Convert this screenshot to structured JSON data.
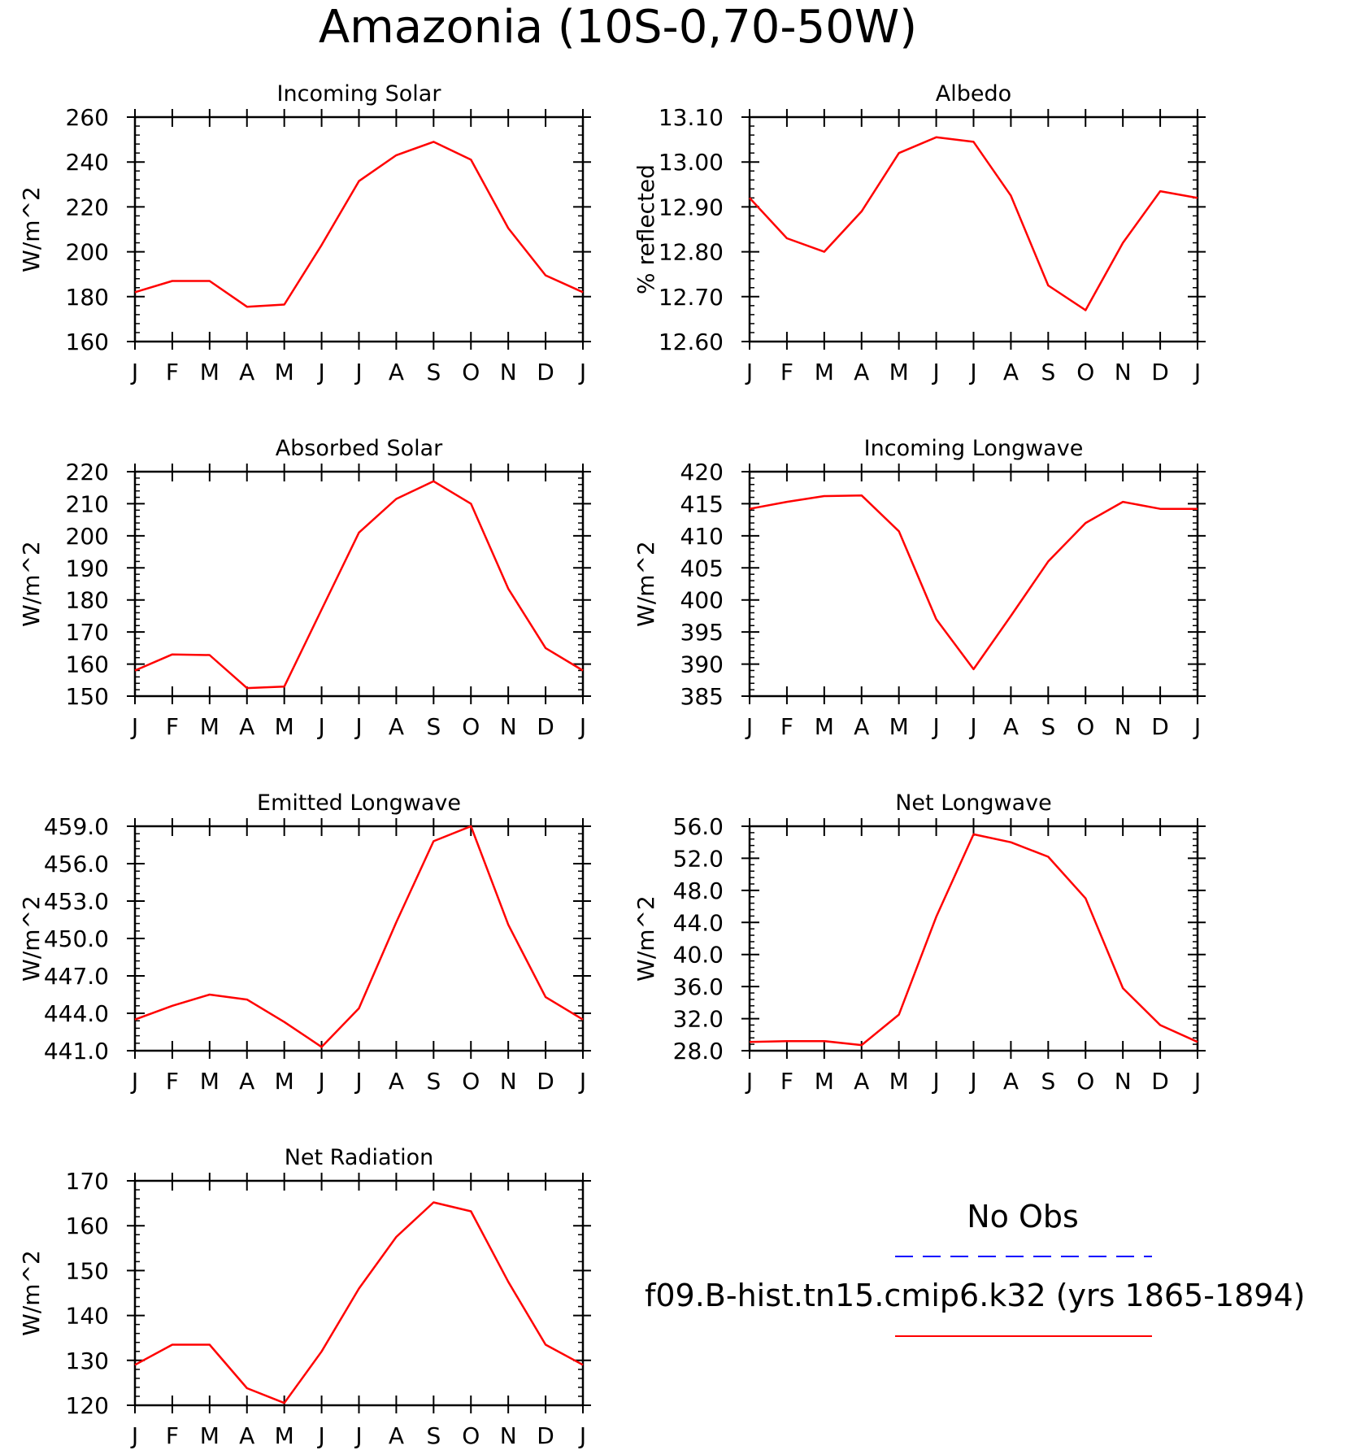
{
  "figure_title": "Amazonia (10S-0,70-50W)",
  "legend": {
    "obs_label": "No Obs",
    "obs_color": "#0000ff",
    "model_label": "f09.B-hist.tn15.cmip6.k32 (yrs 1865-1894)",
    "model_color": "#ff0000"
  },
  "chart_data": [
    {
      "type": "line",
      "title": "Incoming Solar",
      "ylabel": "W/m^2",
      "x": [
        "J",
        "F",
        "M",
        "A",
        "M",
        "J",
        "J",
        "A",
        "S",
        "O",
        "N",
        "D",
        "J"
      ],
      "ylim": [
        160,
        260
      ],
      "yticks": [
        "160",
        "180",
        "200",
        "220",
        "240",
        "260"
      ],
      "series": [
        {
          "color": "#ff0000",
          "values": [
            182,
            187,
            187,
            175.5,
            176.5,
            203,
            231.5,
            243,
            249,
            241,
            210.5,
            189.5,
            182
          ]
        }
      ]
    },
    {
      "type": "line",
      "title": "Albedo",
      "ylabel": "% reflected",
      "x": [
        "J",
        "F",
        "M",
        "A",
        "M",
        "J",
        "J",
        "A",
        "S",
        "O",
        "N",
        "D",
        "J"
      ],
      "ylim": [
        12.6,
        13.1
      ],
      "yticks": [
        "12.60",
        "12.70",
        "12.80",
        "12.90",
        "13.00",
        "13.10"
      ],
      "series": [
        {
          "color": "#ff0000",
          "values": [
            12.92,
            12.83,
            12.8,
            12.89,
            13.02,
            13.055,
            13.045,
            12.925,
            12.725,
            12.67,
            12.82,
            12.935,
            12.92
          ]
        }
      ]
    },
    {
      "type": "line",
      "title": "Absorbed Solar",
      "ylabel": "W/m^2",
      "x": [
        "J",
        "F",
        "M",
        "A",
        "M",
        "J",
        "J",
        "A",
        "S",
        "O",
        "N",
        "D",
        "J"
      ],
      "ylim": [
        150,
        220
      ],
      "yticks": [
        "150",
        "160",
        "170",
        "180",
        "190",
        "200",
        "210",
        "220"
      ],
      "series": [
        {
          "color": "#ff0000",
          "values": [
            158,
            163,
            162.8,
            152.5,
            153,
            177,
            201,
            211.5,
            217,
            210,
            183.5,
            165,
            158
          ]
        }
      ]
    },
    {
      "type": "line",
      "title": "Incoming Longwave",
      "ylabel": "W/m^2",
      "x": [
        "J",
        "F",
        "M",
        "A",
        "M",
        "J",
        "J",
        "A",
        "S",
        "O",
        "N",
        "D",
        "J"
      ],
      "ylim": [
        385,
        420
      ],
      "yticks": [
        "385",
        "390",
        "395",
        "400",
        "405",
        "410",
        "415",
        "420"
      ],
      "series": [
        {
          "color": "#ff0000",
          "values": [
            414.2,
            415.3,
            416.2,
            416.3,
            410.7,
            397,
            389.2,
            397.5,
            406,
            412,
            415.3,
            414.2,
            414.2
          ]
        }
      ]
    },
    {
      "type": "line",
      "title": "Emitted Longwave",
      "ylabel": "W/m^2",
      "x": [
        "J",
        "F",
        "M",
        "A",
        "M",
        "J",
        "J",
        "A",
        "S",
        "O",
        "N",
        "D",
        "J"
      ],
      "ylim": [
        441,
        459
      ],
      "yticks": [
        "441.0",
        "444.0",
        "447.0",
        "450.0",
        "453.0",
        "456.0",
        "459.0"
      ],
      "series": [
        {
          "color": "#ff0000",
          "values": [
            443.5,
            444.6,
            445.5,
            445.1,
            443.3,
            441.3,
            444.4,
            451.3,
            457.8,
            459,
            451.1,
            445.3,
            443.5
          ]
        }
      ]
    },
    {
      "type": "line",
      "title": "Net Longwave",
      "ylabel": "W/m^2",
      "x": [
        "J",
        "F",
        "M",
        "A",
        "M",
        "J",
        "J",
        "A",
        "S",
        "O",
        "N",
        "D",
        "J"
      ],
      "ylim": [
        28,
        56
      ],
      "yticks": [
        "28.0",
        "32.0",
        "36.0",
        "40.0",
        "44.0",
        "48.0",
        "52.0",
        "56.0"
      ],
      "series": [
        {
          "color": "#ff0000",
          "values": [
            29.1,
            29.2,
            29.2,
            28.7,
            32.5,
            44.7,
            55,
            54,
            52.2,
            47,
            35.8,
            31.2,
            29.1
          ]
        }
      ]
    },
    {
      "type": "line",
      "title": "Net Radiation",
      "ylabel": "W/m^2",
      "x": [
        "J",
        "F",
        "M",
        "A",
        "M",
        "J",
        "J",
        "A",
        "S",
        "O",
        "N",
        "D",
        "J"
      ],
      "ylim": [
        120,
        170
      ],
      "yticks": [
        "120",
        "130",
        "140",
        "150",
        "160",
        "170"
      ],
      "series": [
        {
          "color": "#ff0000",
          "values": [
            129,
            133.5,
            133.5,
            123.8,
            120.5,
            132,
            146,
            157.5,
            165.2,
            163.2,
            147.5,
            133.5,
            129
          ]
        }
      ]
    }
  ]
}
